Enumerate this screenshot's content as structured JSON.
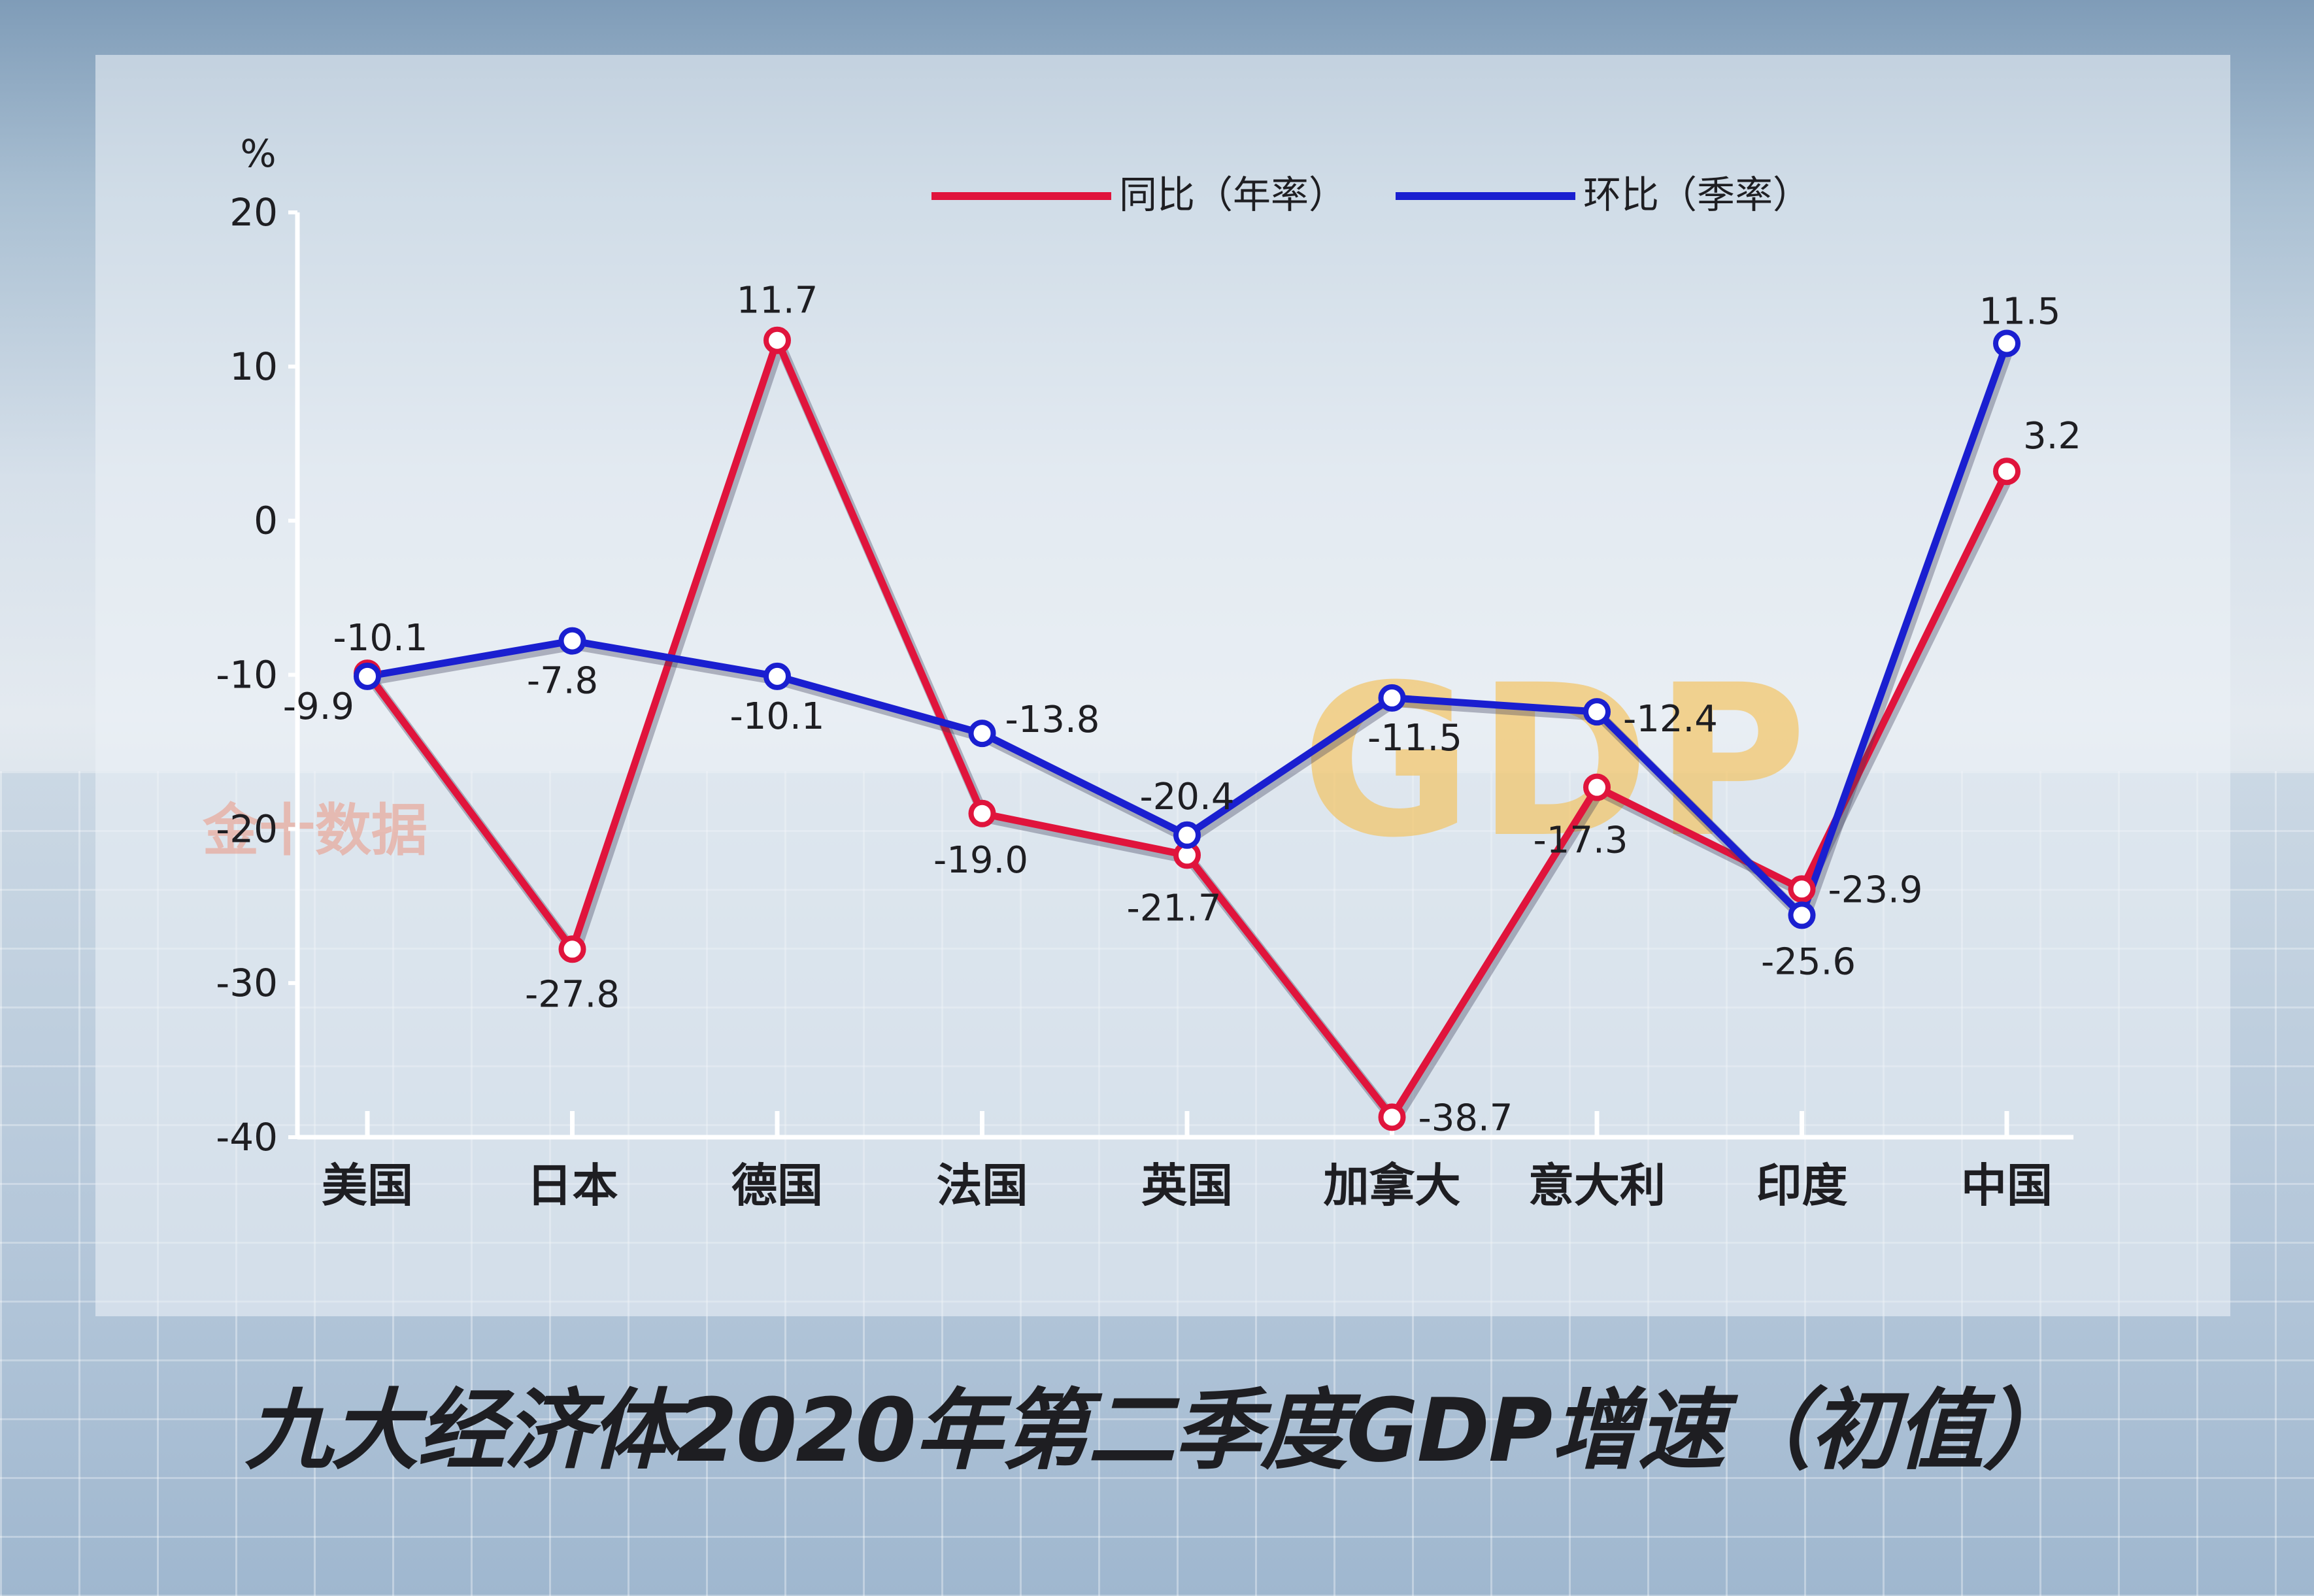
{
  "chart_data": {
    "type": "line",
    "title": "九大经济体2020年第二季度GDP增速（初值）",
    "ylabel": "%",
    "ylim": [
      -40,
      20
    ],
    "yticks": [
      20,
      10,
      0,
      -10,
      -20,
      -30,
      -40
    ],
    "categories": [
      "美国",
      "日本",
      "德国",
      "法国",
      "英国",
      "加拿大",
      "意大利",
      "印度",
      "中国"
    ],
    "series": [
      {
        "name": "同比（年率）",
        "color": "#e0143c",
        "values": [
          -9.9,
          -27.8,
          11.7,
          -19.0,
          -21.7,
          -38.7,
          -17.3,
          -23.9,
          3.2
        ],
        "labels": [
          "-9.9",
          "-27.8",
          "11.7",
          "-19.0",
          "-21.7",
          "-38.7",
          "-17.3",
          "-23.9",
          "3.2"
        ]
      },
      {
        "name": "环比（季率）",
        "color": "#1a1fd0",
        "values": [
          -10.1,
          -7.8,
          -10.1,
          -13.8,
          -20.4,
          -11.5,
          -12.4,
          -25.6,
          11.5
        ],
        "labels": [
          "-10.1",
          "-7.8",
          "-10.1",
          "-13.8",
          "-20.4",
          "-11.5",
          "-12.4",
          "-25.6",
          "11.5"
        ]
      }
    ],
    "legend_position": "top-center",
    "grid": false
  },
  "decor": {
    "watermark": "金十数据",
    "gdp_text": "GDP"
  }
}
